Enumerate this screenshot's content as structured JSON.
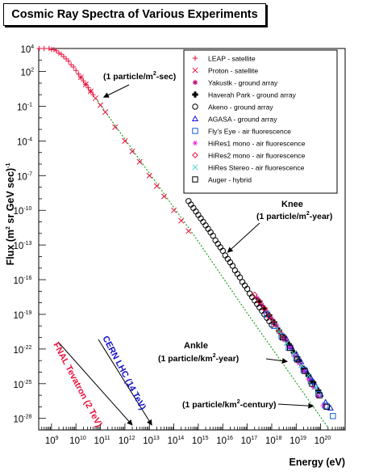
{
  "chart_data": {
    "type": "scatter",
    "title": "Cosmic Ray Spectra of Various Experiments",
    "xlabel": "Energy (eV)",
    "ylabel": {
      "main": "Flux (m",
      "sup1": "2",
      "mid": " sr GeV sec)",
      "sup2": "-1"
    },
    "x_scale": "log",
    "y_scale": "log",
    "xlim": [
      300000000.0,
      1e+21
    ],
    "ylim": [
      1e-29,
      10000.0
    ],
    "x_ticks": [
      {
        "e": 9,
        "label": "10",
        "exp": "9"
      },
      {
        "e": 10,
        "label": "10",
        "exp": "10"
      },
      {
        "e": 11,
        "label": "10",
        "exp": "11"
      },
      {
        "e": 12,
        "label": "10",
        "exp": "12"
      },
      {
        "e": 13,
        "label": "10",
        "exp": "13"
      },
      {
        "e": 14,
        "label": "10",
        "exp": "14"
      },
      {
        "e": 15,
        "label": "10",
        "exp": "15"
      },
      {
        "e": 16,
        "label": "10",
        "exp": "16"
      },
      {
        "e": 17,
        "label": "10",
        "exp": "17"
      },
      {
        "e": 18,
        "label": "10",
        "exp": "18"
      },
      {
        "e": 19,
        "label": "10",
        "exp": "19"
      },
      {
        "e": 20,
        "label": "10",
        "exp": "20"
      }
    ],
    "y_ticks": [
      {
        "e": 4,
        "label": "10",
        "exp": "4"
      },
      {
        "e": 2,
        "label": "10",
        "exp": "2"
      },
      {
        "e": -1,
        "label": "10",
        "exp": "-1"
      },
      {
        "e": -4,
        "label": "10",
        "exp": "-4"
      },
      {
        "e": -7,
        "label": "10",
        "exp": "-7"
      },
      {
        "e": -10,
        "label": "10",
        "exp": "-10"
      },
      {
        "e": -13,
        "label": "10",
        "exp": "-13"
      },
      {
        "e": -16,
        "label": "10",
        "exp": "-16"
      },
      {
        "e": -19,
        "label": "10",
        "exp": "-19"
      },
      {
        "e": -22,
        "label": "10",
        "exp": "-22"
      },
      {
        "e": -25,
        "label": "10",
        "exp": "-25"
      },
      {
        "e": -28,
        "label": "10",
        "exp": "-28"
      }
    ],
    "grid": false,
    "legend_position": "top-right",
    "series": [
      {
        "name": "LEAP - satellite",
        "marker": "plus",
        "color": "#e8103c",
        "points": [
          [
            8.5,
            4
          ],
          [
            8.7,
            4
          ],
          [
            8.9,
            4
          ],
          [
            9.0,
            3.9
          ],
          [
            9.1,
            3.9
          ],
          [
            9.2,
            3.8
          ],
          [
            9.3,
            3.6
          ],
          [
            9.4,
            3.5
          ],
          [
            9.5,
            3.3
          ],
          [
            9.6,
            3.1
          ],
          [
            9.7,
            2.9
          ],
          [
            9.8,
            2.6
          ],
          [
            9.9,
            2.4
          ],
          [
            10.0,
            2.1
          ],
          [
            10.1,
            1.8
          ],
          [
            10.2,
            1.5
          ],
          [
            10.3,
            1.2
          ],
          [
            10.4,
            0.9
          ],
          [
            10.5,
            0.6
          ],
          [
            10.6,
            0.3
          ],
          [
            10.7,
            0.0
          ]
        ]
      },
      {
        "name": "Proton - satellite",
        "marker": "x",
        "color": "#e8103c",
        "points": [
          [
            10.2,
            1.5
          ],
          [
            10.4,
            0.9
          ],
          [
            10.6,
            0.3
          ],
          [
            10.8,
            -0.3
          ],
          [
            11.0,
            -0.9
          ],
          [
            11.2,
            -1.5
          ],
          [
            11.6,
            -2.8
          ],
          [
            12.0,
            -4.0
          ],
          [
            12.3,
            -4.9
          ],
          [
            12.6,
            -5.8
          ],
          [
            13.0,
            -7.0
          ],
          [
            13.3,
            -7.9
          ],
          [
            13.6,
            -8.8
          ],
          [
            14.0,
            -10.0
          ],
          [
            14.3,
            -10.9
          ],
          [
            14.6,
            -11.8
          ]
        ]
      },
      {
        "name": "Yakustk - ground array",
        "marker": "star",
        "color": "#b8007a",
        "points": [
          [
            17.4,
            -17.6
          ],
          [
            17.6,
            -18.2
          ],
          [
            17.8,
            -18.8
          ],
          [
            18.0,
            -19.4
          ],
          [
            18.2,
            -20.0
          ],
          [
            18.4,
            -20.7
          ],
          [
            18.6,
            -21.3
          ],
          [
            18.8,
            -21.9
          ],
          [
            19.0,
            -22.6
          ],
          [
            19.2,
            -23.3
          ],
          [
            19.4,
            -24.0
          ],
          [
            19.6,
            -24.6
          ]
        ]
      },
      {
        "name": "Haverah Park - ground array",
        "marker": "cross4",
        "color": "#000000",
        "points": [
          [
            17.5,
            -17.9
          ],
          [
            17.7,
            -18.5
          ],
          [
            17.9,
            -19.1
          ],
          [
            18.1,
            -19.7
          ],
          [
            18.3,
            -20.4
          ],
          [
            18.5,
            -21.0
          ],
          [
            18.7,
            -21.6
          ],
          [
            18.9,
            -22.3
          ],
          [
            19.1,
            -23.0
          ],
          [
            19.3,
            -23.7
          ],
          [
            19.5,
            -24.3
          ],
          [
            19.7,
            -24.9
          ],
          [
            19.9,
            -25.6
          ]
        ]
      },
      {
        "name": "Akeno - ground array",
        "marker": "circle",
        "color": "#000000",
        "points": [
          [
            14.6,
            -9.2
          ],
          [
            14.7,
            -9.5
          ],
          [
            14.8,
            -9.8
          ],
          [
            14.9,
            -10.1
          ],
          [
            15.0,
            -10.4
          ],
          [
            15.1,
            -10.7
          ],
          [
            15.2,
            -11.0
          ],
          [
            15.3,
            -11.3
          ],
          [
            15.4,
            -11.6
          ],
          [
            15.5,
            -11.9
          ],
          [
            15.6,
            -12.2
          ],
          [
            15.7,
            -12.6
          ],
          [
            15.8,
            -12.9
          ],
          [
            15.9,
            -13.2
          ],
          [
            16.0,
            -13.5
          ],
          [
            16.1,
            -13.9
          ],
          [
            16.2,
            -14.2
          ],
          [
            16.3,
            -14.5
          ],
          [
            16.4,
            -14.8
          ],
          [
            16.5,
            -15.2
          ],
          [
            16.6,
            -15.5
          ],
          [
            16.7,
            -15.8
          ],
          [
            16.8,
            -16.2
          ],
          [
            16.9,
            -16.5
          ],
          [
            17.0,
            -16.8
          ],
          [
            17.1,
            -17.2
          ],
          [
            17.2,
            -17.5
          ],
          [
            17.3,
            -17.8
          ],
          [
            17.4,
            -18.1
          ],
          [
            17.5,
            -18.4
          ],
          [
            17.6,
            -18.7
          ],
          [
            17.7,
            -19.0
          ],
          [
            17.8,
            -19.3
          ],
          [
            17.9,
            -19.6
          ],
          [
            18.0,
            -19.9
          ]
        ]
      },
      {
        "name": "AGASA - ground array",
        "marker": "triangle",
        "color": "#1010e0",
        "points": [
          [
            18.6,
            -21.1
          ],
          [
            18.8,
            -21.8
          ],
          [
            19.0,
            -22.4
          ],
          [
            19.2,
            -23.1
          ],
          [
            19.4,
            -23.8
          ],
          [
            19.6,
            -24.5
          ],
          [
            19.8,
            -25.2
          ],
          [
            20.0,
            -25.9
          ],
          [
            20.2,
            -26.6
          ],
          [
            20.4,
            -27.1
          ]
        ]
      },
      {
        "name": "Fly's Eye - air fluorescence",
        "marker": "square",
        "color": "#1060e0",
        "points": [
          [
            17.8,
            -19.0
          ],
          [
            18.1,
            -20.0
          ],
          [
            18.4,
            -20.9
          ],
          [
            18.7,
            -21.9
          ],
          [
            19.0,
            -22.8
          ],
          [
            19.3,
            -23.8
          ],
          [
            19.6,
            -24.8
          ],
          [
            19.9,
            -25.9
          ],
          [
            20.2,
            -26.9
          ],
          [
            20.5,
            -27.8
          ]
        ]
      },
      {
        "name": "HiRes1 mono - air fluorescence",
        "marker": "star6",
        "color": "#e020e0",
        "points": [
          [
            18.5,
            -21.2
          ],
          [
            18.7,
            -21.8
          ],
          [
            18.9,
            -22.5
          ],
          [
            19.1,
            -23.2
          ],
          [
            19.3,
            -23.9
          ],
          [
            19.5,
            -24.6
          ],
          [
            19.7,
            -25.3
          ],
          [
            19.9,
            -26.1
          ],
          [
            20.1,
            -26.9
          ]
        ]
      },
      {
        "name": "HiRes2 mono - air fluorescence",
        "marker": "diamond",
        "color": "#e8103c",
        "points": [
          [
            17.3,
            -17.3
          ],
          [
            17.5,
            -17.9
          ],
          [
            17.7,
            -18.5
          ],
          [
            17.9,
            -19.2
          ],
          [
            18.1,
            -19.8
          ],
          [
            18.3,
            -20.5
          ],
          [
            18.5,
            -21.1
          ]
        ]
      },
      {
        "name": "HiRes Stereo - air fluorescence",
        "marker": "x",
        "color": "#40d8c8",
        "points": [
          [
            18.3,
            -20.5
          ],
          [
            18.6,
            -21.5
          ],
          [
            18.9,
            -22.4
          ],
          [
            19.2,
            -23.4
          ],
          [
            19.5,
            -24.3
          ],
          [
            19.8,
            -25.3
          ]
        ]
      },
      {
        "name": "Auger - hybrid",
        "marker": "square",
        "color": "#000000",
        "points": [
          [
            18.45,
            -21.0
          ],
          [
            18.75,
            -21.9
          ],
          [
            19.05,
            -22.9
          ],
          [
            19.35,
            -23.9
          ],
          [
            19.65,
            -25.0
          ],
          [
            19.95,
            -26.0
          ],
          [
            20.25,
            -27.0
          ]
        ]
      }
    ],
    "fit_line": {
      "color": "#22a022",
      "points": [
        [
          10.8,
          -0.3
        ],
        [
          15.0,
          -12.7
        ],
        [
          17.0,
          -18.9
        ],
        [
          20.3,
          -28.8
        ]
      ]
    },
    "annotations": [
      {
        "text": "(1 particle/m",
        "sup": "2",
        "tail": "-sec)",
        "x": 11.0,
        "y": -0.5,
        "arrow_to": [
          11.0,
          -0.5
        ]
      },
      {
        "text": "Knee",
        "x": 16.0,
        "y": -13.5,
        "arrow_to": [
          16.0,
          -13.5
        ]
      },
      {
        "text": "(1 particle/m",
        "sup": "2",
        "tail": "-year)",
        "x": 16.0,
        "y": -13.5
      },
      {
        "text": "Ankle",
        "x": 18.9,
        "y": -22.8,
        "arrow_to": [
          18.9,
          -22.8
        ]
      },
      {
        "text": "(1 particle/km",
        "sup": "2",
        "tail": "-year)",
        "x": 18.9,
        "y": -22.8
      },
      {
        "text": "(1 particle/km",
        "sup": "2",
        "tail": "-century)",
        "x": 19.9,
        "y": -26.8,
        "arrow_to": [
          19.9,
          -26.8
        ]
      }
    ],
    "accelerators": [
      {
        "label": "FNAL Tevatron (2 TeV)",
        "color": "#e8103c",
        "energy_exp": 12.3
      },
      {
        "label": "CERN LHC (14 TeV)",
        "color": "#1010c8",
        "energy_exp": 13.1
      }
    ]
  }
}
